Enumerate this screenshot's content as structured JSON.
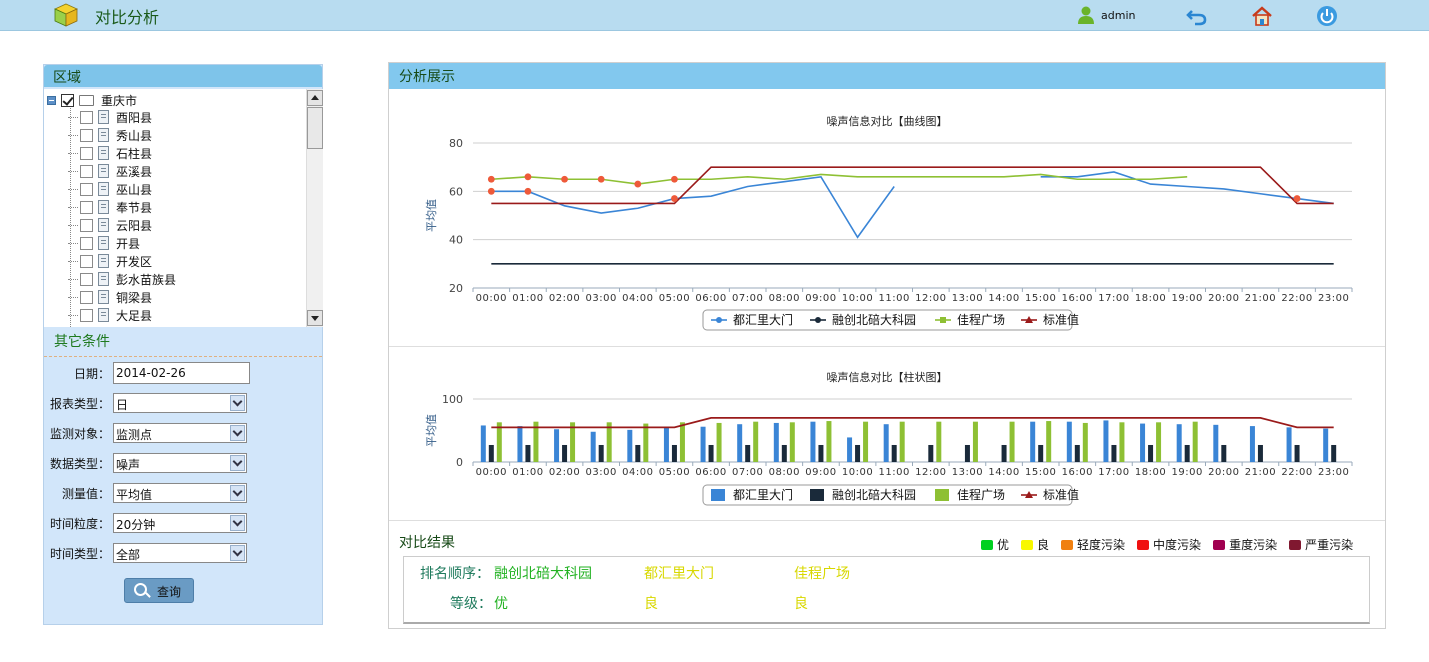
{
  "header": {
    "title": "对比分析",
    "user": "admin",
    "icons": [
      "cube-logo-icon",
      "user-icon",
      "back-icon",
      "home-icon",
      "power-icon"
    ]
  },
  "region": {
    "title": "区域",
    "root": "重庆市",
    "items": [
      "酉阳县",
      "秀山县",
      "石柱县",
      "巫溪县",
      "巫山县",
      "奉节县",
      "云阳县",
      "开县",
      "开发区",
      "彭水苗族县",
      "铜梁县",
      "大足县"
    ]
  },
  "conditions": {
    "title": "其它条件",
    "date_label": "日期：",
    "date_value": "2014-02-26",
    "fields": [
      {
        "label": "报表类型：",
        "value": "日"
      },
      {
        "label": "监测对象：",
        "value": "监测点"
      },
      {
        "label": "数据类型：",
        "value": "噪声"
      },
      {
        "label": "测量值：",
        "value": "平均值"
      },
      {
        "label": "时间粒度：",
        "value": "20分钟"
      },
      {
        "label": "时间类型：",
        "value": "全部"
      }
    ],
    "query_label": "查询"
  },
  "analysis": {
    "title": "分析展示"
  },
  "chart_data": [
    {
      "type": "line",
      "title": "噪声信息对比【曲线图】",
      "ylabel": "平均值",
      "xlabel": "",
      "ylim": [
        20,
        80
      ],
      "yticks": [
        20,
        40,
        60,
        80
      ],
      "grid": true,
      "legend": "bottom-center",
      "x": [
        "00:00",
        "01:00",
        "02:00",
        "03:00",
        "04:00",
        "05:00",
        "06:00",
        "07:00",
        "08:00",
        "09:00",
        "10:00",
        "11:00",
        "12:00",
        "13:00",
        "14:00",
        "15:00",
        "16:00",
        "17:00",
        "18:00",
        "19:00",
        "20:00",
        "21:00",
        "22:00",
        "23:00"
      ],
      "series": [
        {
          "name": "都汇里大门",
          "color": "#3a85d6",
          "values": [
            60,
            60,
            54,
            51,
            53,
            57,
            58,
            62,
            64,
            66,
            41,
            62,
            null,
            null,
            null,
            66,
            66,
            68,
            63,
            62,
            61,
            59,
            57,
            55
          ]
        },
        {
          "name": "融创北碚大科园",
          "color": "#1a2a3a",
          "values": [
            30,
            30,
            30,
            30,
            30,
            30,
            30,
            30,
            30,
            30,
            30,
            30,
            30,
            30,
            30,
            30,
            30,
            30,
            30,
            30,
            30,
            30,
            30,
            30
          ]
        },
        {
          "name": "佳程广场",
          "color": "#8ec034",
          "values": [
            65,
            66,
            65,
            65,
            63,
            65,
            65,
            66,
            65,
            67,
            66,
            66,
            66,
            66,
            66,
            67,
            65,
            65,
            65,
            66,
            null,
            null,
            null,
            null
          ]
        },
        {
          "name": "标准值",
          "color": "#9a1a1a",
          "values": [
            55,
            55,
            55,
            55,
            55,
            55,
            70,
            70,
            70,
            70,
            70,
            70,
            70,
            70,
            70,
            70,
            70,
            70,
            70,
            70,
            70,
            70,
            55,
            55
          ]
        }
      ]
    },
    {
      "type": "bar",
      "title": "噪声信息对比【柱状图】",
      "ylabel": "平均值",
      "xlabel": "",
      "ylim": [
        0,
        100
      ],
      "yticks": [
        0,
        100
      ],
      "grid": true,
      "legend": "bottom-center",
      "categories": [
        "00:00",
        "01:00",
        "02:00",
        "03:00",
        "04:00",
        "05:00",
        "06:00",
        "07:00",
        "08:00",
        "09:00",
        "10:00",
        "11:00",
        "12:00",
        "13:00",
        "14:00",
        "15:00",
        "16:00",
        "17:00",
        "18:00",
        "19:00",
        "20:00",
        "21:00",
        "22:00",
        "23:00"
      ],
      "series": [
        {
          "name": "都汇里大门",
          "color": "#3a85d6",
          "values": [
            58,
            57,
            52,
            48,
            51,
            55,
            56,
            60,
            62,
            64,
            39,
            60,
            null,
            null,
            null,
            64,
            64,
            66,
            61,
            60,
            59,
            57,
            55,
            53
          ]
        },
        {
          "name": "融创北碚大科园",
          "color": "#1a2a3a",
          "values": [
            27,
            27,
            27,
            27,
            27,
            27,
            27,
            27,
            27,
            27,
            27,
            27,
            27,
            27,
            27,
            27,
            27,
            27,
            27,
            27,
            27,
            27,
            27,
            27
          ]
        },
        {
          "name": "佳程广场",
          "color": "#8ec034",
          "values": [
            63,
            64,
            63,
            63,
            61,
            63,
            62,
            64,
            63,
            65,
            64,
            64,
            64,
            64,
            64,
            65,
            62,
            63,
            63,
            64,
            null,
            null,
            null,
            null
          ]
        },
        {
          "name": "标准值",
          "color": "#9a1a1a",
          "type": "line",
          "values": [
            55,
            55,
            55,
            55,
            55,
            55,
            70,
            70,
            70,
            70,
            70,
            70,
            70,
            70,
            70,
            70,
            70,
            70,
            70,
            70,
            70,
            70,
            55,
            55
          ]
        }
      ]
    }
  ],
  "result": {
    "title": "对比结果",
    "levels": [
      {
        "label": "优",
        "color": "#00d020"
      },
      {
        "label": "良",
        "color": "#f8f800"
      },
      {
        "label": "轻度污染",
        "color": "#f08010"
      },
      {
        "label": "中度污染",
        "color": "#f01010"
      },
      {
        "label": "重度污染",
        "color": "#a00050"
      },
      {
        "label": "严重污染",
        "color": "#801830"
      }
    ],
    "rank_label": "排名顺序：",
    "grade_label": "等级：",
    "entries": [
      {
        "name": "融创北碚大科园",
        "grade": "优",
        "color": "#22b222"
      },
      {
        "name": "都汇里大门",
        "grade": "良",
        "color": "#d8d800"
      },
      {
        "name": "佳程广场",
        "grade": "良",
        "color": "#d8d800"
      }
    ]
  }
}
